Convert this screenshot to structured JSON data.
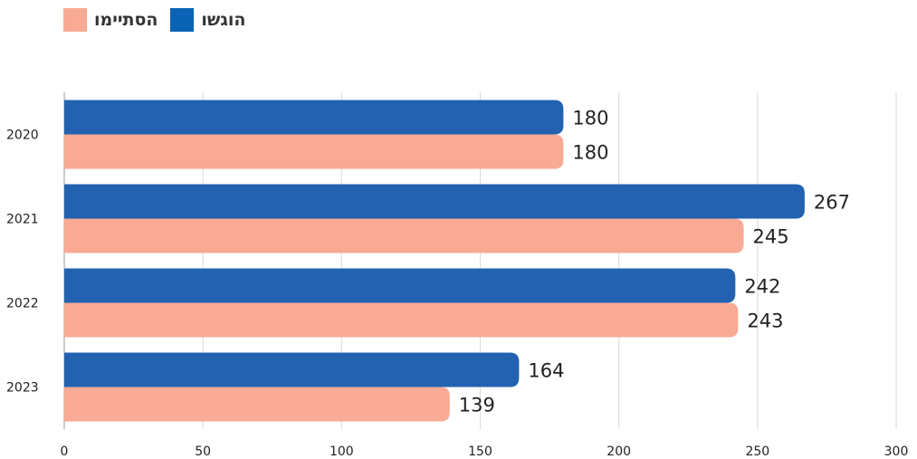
{
  "colors": {
    "submitted": "#2262b0",
    "completed": "#f8aa94",
    "legend_submitted": "#0b63b5",
    "gridline": "#d9d9d9",
    "axis": "#9a9a9a"
  },
  "legend": {
    "submitted_label": "הוגשו",
    "completed_label": "הסתיימו"
  },
  "chart_data": {
    "type": "bar",
    "orientation": "horizontal",
    "categories": [
      "2020",
      "2021",
      "2022",
      "2023"
    ],
    "series": [
      {
        "name": "הוגשו",
        "values": [
          180,
          267,
          242,
          164
        ]
      },
      {
        "name": "הסתיימו",
        "values": [
          180,
          245,
          243,
          139
        ]
      }
    ],
    "xlim": [
      0,
      300
    ],
    "xticks": [
      0,
      50,
      100,
      150,
      200,
      250,
      300
    ],
    "grid": "vertical",
    "legend_position": "top-left",
    "data_labels": true,
    "title": "",
    "xlabel": "",
    "ylabel": ""
  }
}
